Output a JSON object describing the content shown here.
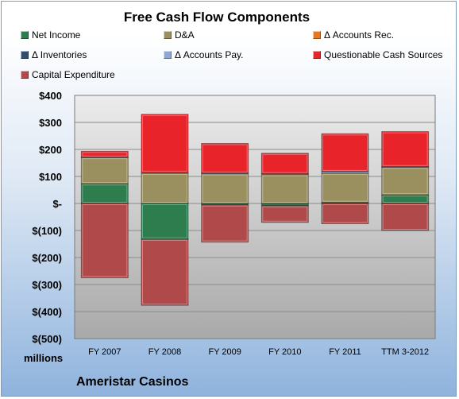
{
  "chart_data": {
    "type": "bar",
    "stacked": true,
    "title": "Free Cash Flow Components",
    "company": "Ameristar Casinos",
    "units": "millions",
    "categories": [
      "FY 2007",
      "FY 2008",
      "FY 2009",
      "FY 2010",
      "FY 2011",
      "TTM 3-2012"
    ],
    "ylim": [
      -500,
      400
    ],
    "yticks": [
      {
        "value": 400,
        "label": "$400"
      },
      {
        "value": 300,
        "label": "$300"
      },
      {
        "value": 200,
        "label": "$200"
      },
      {
        "value": 100,
        "label": "$100"
      },
      {
        "value": 0,
        "label": "$-"
      },
      {
        "value": -100,
        "label": "$(100)"
      },
      {
        "value": -200,
        "label": "$(200)"
      },
      {
        "value": -300,
        "label": "$(300)"
      },
      {
        "value": -400,
        "label": "$(400)"
      },
      {
        "value": -500,
        "label": "$(500)"
      }
    ],
    "grid": true,
    "legend_position": "top",
    "series": [
      {
        "name": "Net Income",
        "color": "#2e7d4f",
        "values": [
          73,
          -132,
          -5,
          -8,
          4,
          32
        ]
      },
      {
        "name": "D&A",
        "color": "#9a8f5e",
        "values": [
          97,
          112,
          110,
          107,
          108,
          102
        ]
      },
      {
        "name": "Δ Accounts Rec.",
        "color": "#e87722",
        "values": [
          0,
          0,
          0,
          0,
          0,
          0
        ]
      },
      {
        "name": "Δ Inventories",
        "color": "#2f4f6f",
        "values": [
          0,
          0,
          0,
          0,
          0,
          0
        ]
      },
      {
        "name": "Δ Accounts Pay.",
        "color": "#8ea9d8",
        "values": [
          1,
          3,
          2,
          3,
          6,
          2
        ]
      },
      {
        "name": "Questionable Cash Sources",
        "color": "#e8242a",
        "values": [
          22,
          215,
          110,
          76,
          140,
          130
        ]
      },
      {
        "name": "Capital Expenditure",
        "color": "#b04a4a",
        "values": [
          -275,
          -245,
          -138,
          -62,
          -75,
          -100
        ]
      }
    ]
  }
}
